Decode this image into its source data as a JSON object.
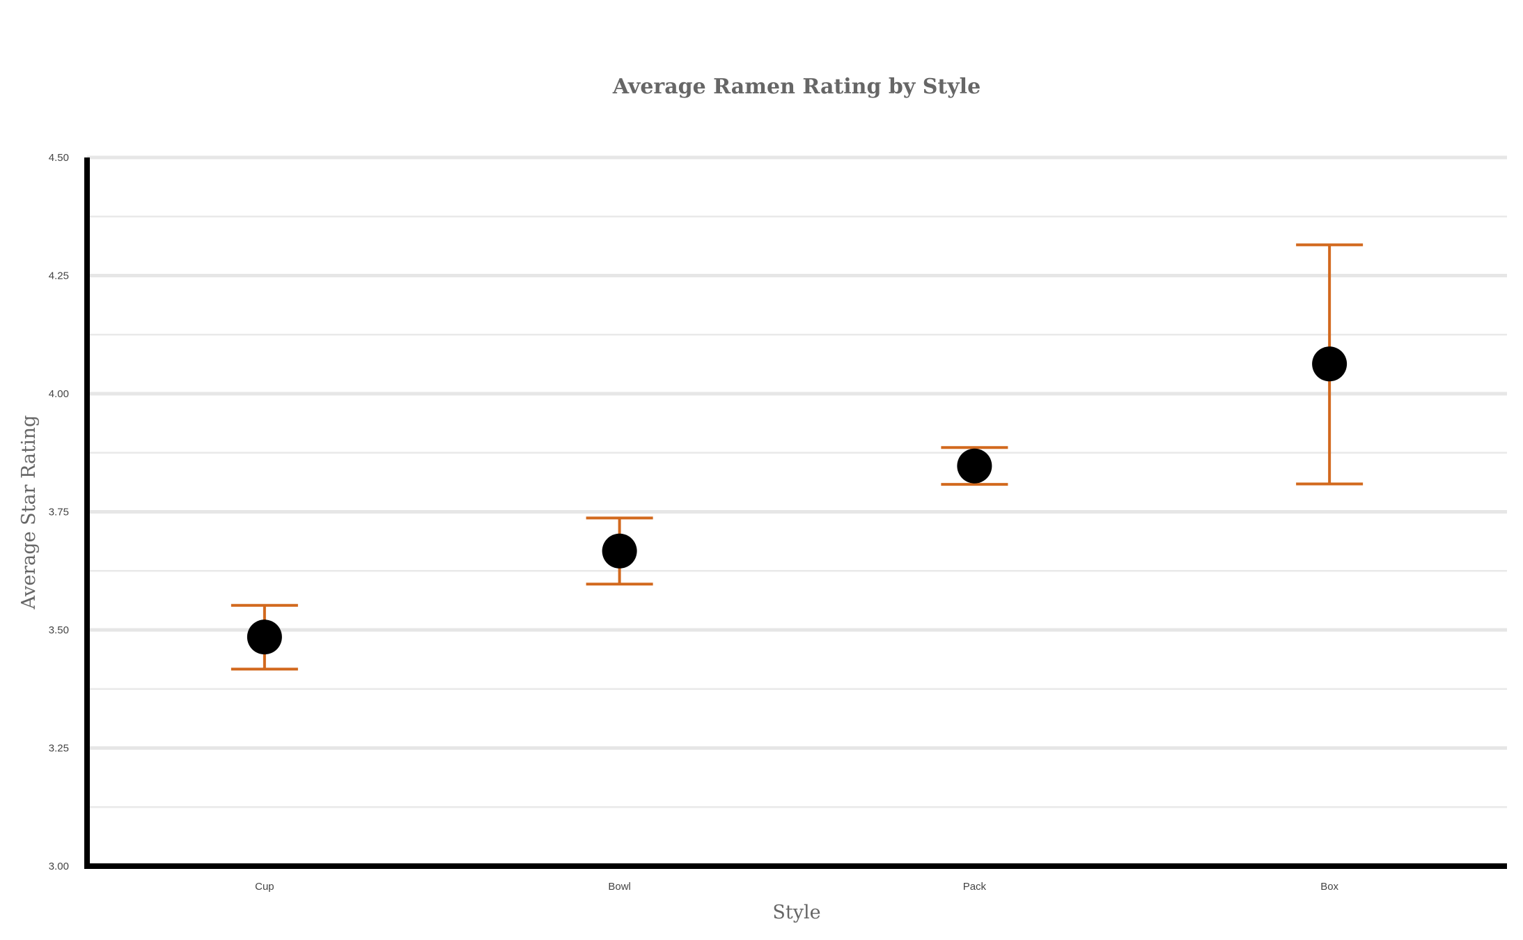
{
  "chart_data": {
    "type": "scatter",
    "title": "Average Ramen Rating by Style",
    "xlabel": "Style",
    "ylabel": "Average Star Rating",
    "categories": [
      "Cup",
      "Bowl",
      "Pack",
      "Box"
    ],
    "values": [
      3.485,
      3.667,
      3.847,
      4.063
    ],
    "error_low": [
      3.417,
      3.597,
      3.808,
      3.809
    ],
    "error_high": [
      3.552,
      3.737,
      3.886,
      4.315
    ],
    "ylim": [
      3.0,
      4.5
    ],
    "yticks": [
      "3.00",
      "3.25",
      "3.50",
      "3.75",
      "4.00",
      "4.25",
      "4.50"
    ],
    "grid": true,
    "colors": {
      "marker": "#000000",
      "error_bar": "#d2691e",
      "grid": "#e6e6e6",
      "axis": "#000000"
    }
  }
}
